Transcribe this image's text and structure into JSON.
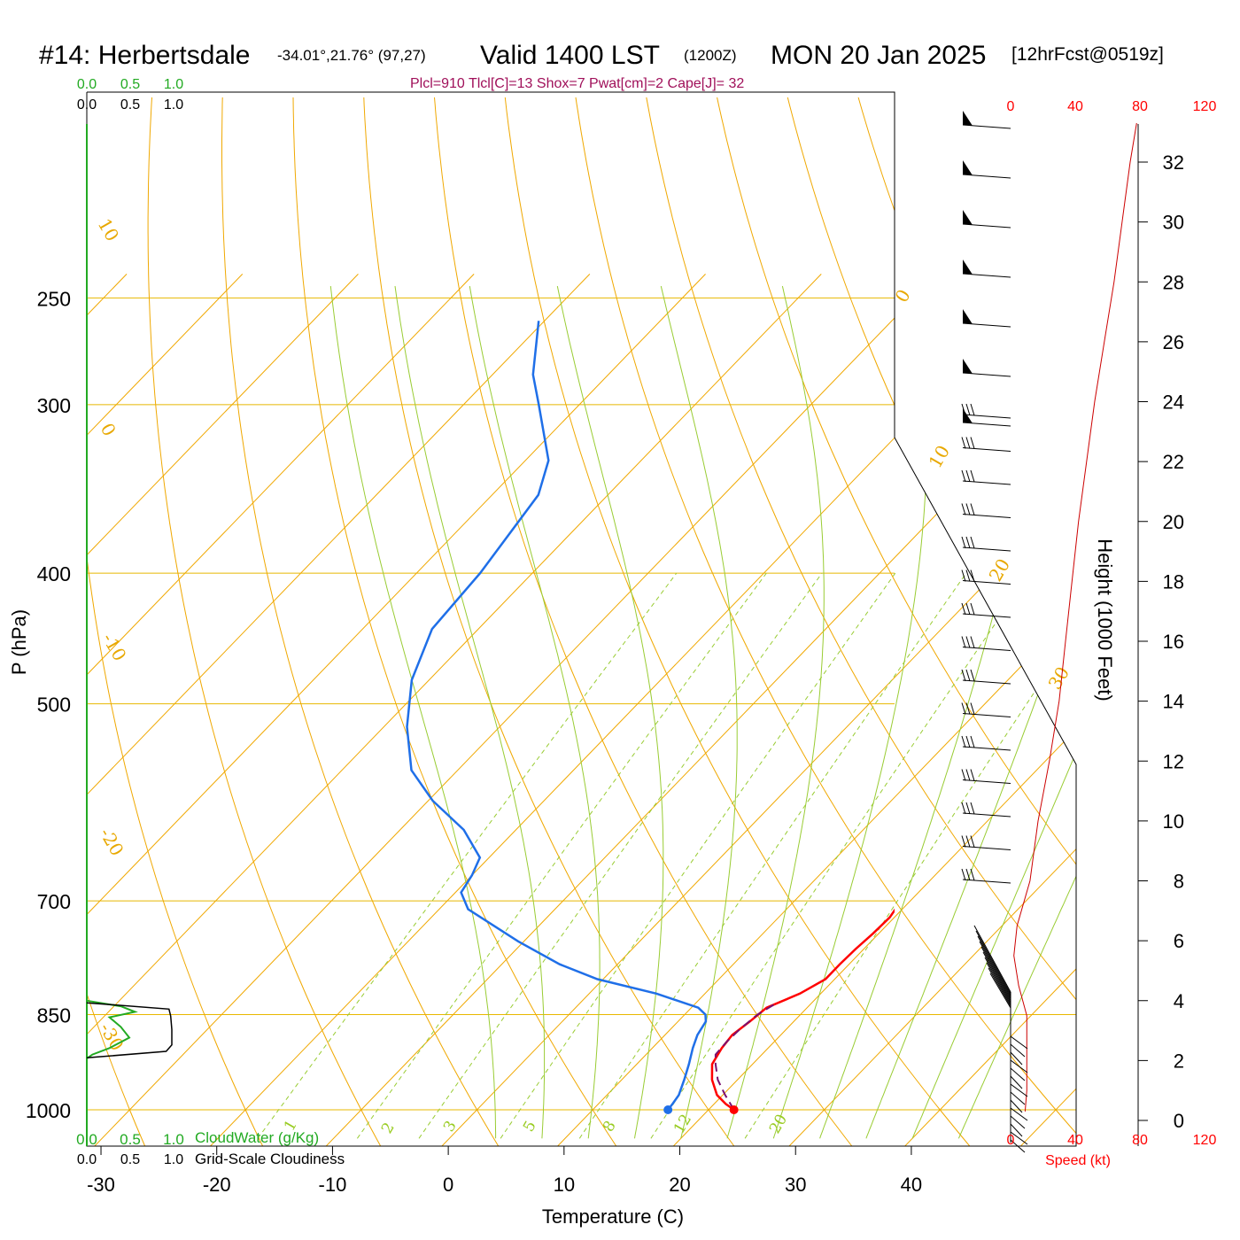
{
  "header": {
    "station": "#14: Herbertsdale",
    "coords": "-34.01°,21.76° (97,27)",
    "valid": "Valid 1400 LST",
    "zulu": "(1200Z)",
    "date": "MON 20 Jan 2025",
    "forecast": "[12hrFcst@0519z]"
  },
  "params_line": "Plcl=910 Tlcl[C]=13 Shox=7 Pwat[cm]=2 Cape[J]= 32",
  "colors": {
    "temperature": "#ff0000",
    "dewpoint": "#1f6fe8",
    "parcel": "#7a1070",
    "isobar": "#e8b800",
    "dry_adiabat": "#f0a800",
    "moist_adiabat": "#99cc33",
    "mixing_ratio": "#99cc33",
    "cloud_water": "#22aa22"
  },
  "cloud_scale_top": {
    "green": [
      "0.0",
      "0.5",
      "1.0"
    ],
    "black": [
      "0.0",
      "0.5",
      "1.0"
    ]
  },
  "cloud_scale_bottom": {
    "green": [
      "0.0",
      "0.5",
      "1.0"
    ],
    "green_label": "CloudWater (g/Kg)",
    "black": [
      "0.0",
      "0.5",
      "1.0"
    ],
    "black_label": "Grid-Scale Cloudiness"
  },
  "speed_scale": {
    "top": [
      "0",
      "40",
      "80",
      "120"
    ],
    "bottom": [
      "0",
      "40",
      "80",
      "120"
    ],
    "label": "Speed (kt)"
  },
  "height_axis": {
    "label": "Height (1000 Feet)",
    "ticks": [
      "0",
      "2",
      "4",
      "6",
      "8",
      "10",
      "12",
      "14",
      "16",
      "18",
      "20",
      "22",
      "24",
      "26",
      "28",
      "30",
      "32"
    ]
  },
  "chart_data": {
    "type": "line",
    "title": "#14: Herbertsdale",
    "xlabel": "Temperature (C)",
    "ylabel": "P (hPa)",
    "x_ticks": [
      -30,
      -20,
      -10,
      0,
      10,
      20,
      30,
      40
    ],
    "y_ticks": [
      250,
      300,
      400,
      500,
      700,
      850,
      1000
    ],
    "xlim": [
      -36,
      47
    ],
    "ylim": [
      1050,
      250
    ],
    "skew": "skew-T log-p",
    "dry_adiabat_labels": [
      "10",
      "0",
      "-10",
      "-20",
      "-30",
      "0",
      "10",
      "20",
      "30"
    ],
    "mixing_ratio_labels": [
      "1",
      "2",
      "3",
      "5",
      "8",
      "12",
      "20"
    ],
    "series": [
      {
        "name": "temperature",
        "points": [
          [
            1000,
            22.2
          ],
          [
            990,
            21.0
          ],
          [
            975,
            19.5
          ],
          [
            950,
            17.8
          ],
          [
            925,
            16.5
          ],
          [
            900,
            16.0
          ],
          [
            880,
            15.8
          ],
          [
            860,
            16.2
          ],
          [
            840,
            16.5
          ],
          [
            820,
            18.2
          ],
          [
            800,
            19.2
          ],
          [
            780,
            19.2
          ],
          [
            760,
            19.3
          ],
          [
            740,
            19.5
          ],
          [
            720,
            19.6
          ],
          [
            700,
            19.2
          ],
          [
            680,
            17.8
          ],
          [
            650,
            15.4
          ],
          [
            600,
            11.5
          ],
          [
            550,
            7.5
          ],
          [
            500,
            3.2
          ],
          [
            450,
            -1.5
          ],
          [
            400,
            -6.6
          ],
          [
            350,
            -13.3
          ],
          [
            300,
            -21.3
          ],
          [
            275,
            -25.8
          ],
          [
            260,
            -28.8
          ]
        ]
      },
      {
        "name": "dewpoint",
        "points": [
          [
            1000,
            16.5
          ],
          [
            990,
            16.4
          ],
          [
            975,
            16.2
          ],
          [
            950,
            15.4
          ],
          [
            925,
            14.5
          ],
          [
            900,
            13.5
          ],
          [
            880,
            12.8
          ],
          [
            860,
            12.4
          ],
          [
            850,
            11.8
          ],
          [
            840,
            10.6
          ],
          [
            820,
            5.8
          ],
          [
            800,
            -0.5
          ],
          [
            780,
            -5.0
          ],
          [
            750,
            -10.5
          ],
          [
            710,
            -17.5
          ],
          [
            690,
            -19.5
          ],
          [
            670,
            -20.0
          ],
          [
            650,
            -20.8
          ],
          [
            620,
            -24.5
          ],
          [
            590,
            -29.6
          ],
          [
            560,
            -34.0
          ],
          [
            520,
            -38.0
          ],
          [
            480,
            -41.5
          ],
          [
            440,
            -44.0
          ],
          [
            400,
            -44.5
          ],
          [
            350,
            -46.0
          ],
          [
            330,
            -48.0
          ],
          [
            300,
            -53.5
          ],
          [
            285,
            -56.5
          ],
          [
            260,
            -60.5
          ]
        ]
      },
      {
        "name": "parcel",
        "style": "dashed",
        "points": [
          [
            1000,
            22.2
          ],
          [
            975,
            20.2
          ],
          [
            950,
            18.3
          ],
          [
            925,
            16.8
          ],
          [
            910,
            16.0
          ],
          [
            890,
            15.9
          ],
          [
            870,
            16.0
          ],
          [
            850,
            16.3
          ],
          [
            835,
            16.9
          ]
        ]
      }
    ],
    "surface_points": {
      "temperature": [
        1000,
        22.2
      ],
      "dewpoint": [
        1000,
        16.5
      ]
    },
    "cloudwater_profile": [
      [
        830,
        0.0
      ],
      [
        838,
        0.6
      ],
      [
        846,
        0.85
      ],
      [
        854,
        0.4
      ],
      [
        868,
        0.6
      ],
      [
        884,
        0.75
      ],
      [
        900,
        0.4
      ],
      [
        910,
        0.1
      ],
      [
        916,
        0.0
      ]
    ],
    "cloudiness_profile": [
      [
        833,
        0.0
      ],
      [
        842,
        1.45
      ],
      [
        852,
        1.48
      ],
      [
        872,
        1.5
      ],
      [
        895,
        1.5
      ],
      [
        905,
        1.4
      ],
      [
        915,
        0.0
      ]
    ],
    "wind_speed_profile": [
      [
        0.3,
        9
      ],
      [
        1,
        10
      ],
      [
        2,
        10
      ],
      [
        3.5,
        10
      ],
      [
        4.5,
        5
      ],
      [
        5.5,
        2
      ],
      [
        6.5,
        4
      ],
      [
        8,
        12
      ],
      [
        10,
        17
      ],
      [
        12,
        24
      ],
      [
        14,
        30
      ],
      [
        16,
        34
      ],
      [
        18,
        38
      ],
      [
        20,
        42
      ],
      [
        22,
        47
      ],
      [
        24,
        52
      ],
      [
        26,
        58
      ],
      [
        28,
        64
      ],
      [
        30,
        69
      ],
      [
        32,
        74
      ],
      [
        33.3,
        78
      ]
    ]
  }
}
